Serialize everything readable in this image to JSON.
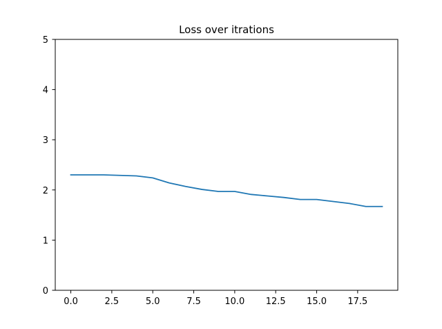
{
  "chart_data": {
    "type": "line",
    "title": "Loss over itrations",
    "xlabel": "",
    "ylabel": "",
    "xlim": [
      -0.95,
      19.95
    ],
    "ylim": [
      0,
      5
    ],
    "xticks": [
      0.0,
      2.5,
      5.0,
      7.5,
      10.0,
      12.5,
      15.0,
      17.5
    ],
    "xtick_labels": [
      "0.0",
      "2.5",
      "5.0",
      "7.5",
      "10.0",
      "12.5",
      "15.0",
      "17.5"
    ],
    "yticks": [
      0,
      1,
      2,
      3,
      4,
      5
    ],
    "ytick_labels": [
      "0",
      "1",
      "2",
      "3",
      "4",
      "5"
    ],
    "grid": false,
    "legend": "none",
    "series": [
      {
        "color": "#1f77b4",
        "x": [
          0,
          1,
          2,
          3,
          4,
          5,
          6,
          7,
          8,
          9,
          10,
          11,
          12,
          13,
          14,
          15,
          16,
          17,
          18,
          19
        ],
        "values": [
          2.3,
          2.3,
          2.3,
          2.29,
          2.28,
          2.24,
          2.14,
          2.07,
          2.01,
          1.97,
          1.97,
          1.91,
          1.88,
          1.85,
          1.81,
          1.81,
          1.77,
          1.73,
          1.67,
          1.67
        ]
      }
    ]
  }
}
